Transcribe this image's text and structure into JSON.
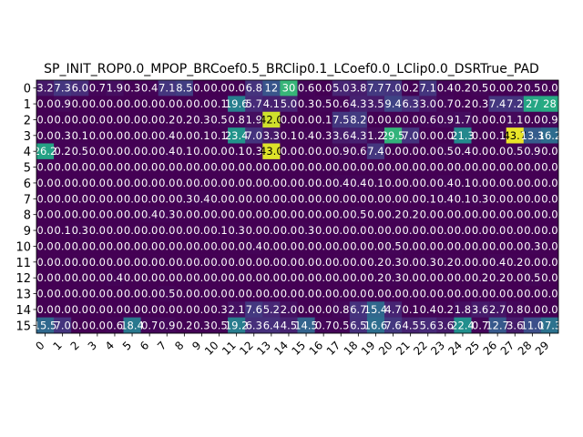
{
  "chart_data": {
    "type": "heatmap",
    "title": "SP_INIT_ROP0.0_MPOP_BRCoef0.5_BRClip0.1_LCoef0.0_LClip0.0_DSRTrue_PAD",
    "xlabel": "",
    "ylabel": "",
    "x_ticks": [
      "0",
      "1",
      "2",
      "3",
      "4",
      "5",
      "6",
      "7",
      "8",
      "9",
      "10",
      "11",
      "12",
      "13",
      "14",
      "15",
      "16",
      "17",
      "18",
      "19",
      "20",
      "21",
      "22",
      "23",
      "24",
      "25",
      "26",
      "27",
      "28",
      "29"
    ],
    "y_ticks": [
      "0",
      "1",
      "2",
      "3",
      "4",
      "5",
      "6",
      "7",
      "8",
      "9",
      "10",
      "11",
      "12",
      "13",
      "14",
      "15"
    ],
    "colormap": "viridis",
    "vmin": 0.0,
    "vmax": 45.0,
    "values": [
      [
        3.2,
        7.3,
        6.0,
        0.7,
        1.9,
        0.3,
        0.4,
        7.1,
        8.5,
        0.0,
        0.0,
        0.0,
        6.8,
        12,
        30,
        0.6,
        0.0,
        5.0,
        3.8,
        7.7,
        7.0,
        0.2,
        7.1,
        0.4,
        0.2,
        0.5,
        0.0,
        0.2,
        0.5,
        0.0
      ],
      [
        0.0,
        0.9,
        0.0,
        0.0,
        0.0,
        0.0,
        0.0,
        0.0,
        0.0,
        0.0,
        0.1,
        19.6,
        5.7,
        4.1,
        5.0,
        0.3,
        0.5,
        0.6,
        4.3,
        3.5,
        9.4,
        6.3,
        3.0,
        0.7,
        0.2,
        0.3,
        7.4,
        7.2,
        27,
        28
      ],
      [
        0.0,
        0.0,
        0.0,
        0.0,
        0.0,
        0.0,
        0.0,
        0.2,
        0.2,
        0.3,
        0.5,
        0.8,
        1.9,
        42.0,
        0.0,
        0.0,
        0.1,
        7.5,
        8.2,
        0.0,
        0.0,
        0.0,
        0.6,
        0.9,
        1.7,
        0.0,
        0.0,
        1.1,
        0.0,
        0.9
      ],
      [
        0.0,
        0.3,
        0.1,
        0.0,
        0.0,
        0.0,
        0.0,
        0.4,
        0.0,
        0.1,
        0.1,
        23.4,
        7.0,
        3.3,
        0.1,
        0.4,
        0.3,
        3.6,
        4.3,
        1.2,
        29.5,
        7.0,
        0.0,
        0.0,
        21.3,
        0.0,
        0.1,
        43.7,
        13.3,
        16.2
      ],
      [
        26.2,
        0.2,
        0.5,
        0.0,
        0.0,
        0.0,
        0.0,
        0.4,
        0.1,
        0.0,
        0.0,
        0.1,
        0.3,
        43.0,
        0.0,
        0.0,
        0.0,
        0.9,
        0.6,
        7.4,
        0.0,
        0.0,
        0.0,
        0.5,
        0.4,
        0.0,
        0.0,
        0.5,
        0.9,
        0.0
      ],
      [
        0.0,
        0.0,
        0.0,
        0.0,
        0.0,
        0.0,
        0.0,
        0.0,
        0.0,
        0.0,
        0.0,
        0.0,
        0.0,
        0.0,
        0.0,
        0.0,
        0.0,
        0.0,
        0.0,
        0.0,
        0.0,
        0.0,
        0.0,
        0.0,
        0.0,
        0.0,
        0.0,
        0.0,
        0.0,
        0.0
      ],
      [
        0.0,
        0.0,
        0.0,
        0.0,
        0.0,
        0.0,
        0.0,
        0.0,
        0.0,
        0.0,
        0.0,
        0.0,
        0.0,
        0.0,
        0.0,
        0.0,
        0.0,
        0.4,
        0.4,
        0.1,
        0.0,
        0.0,
        0.0,
        0.4,
        0.1,
        0.0,
        0.0,
        0.0,
        0.0,
        0.0
      ],
      [
        0.0,
        0.0,
        0.0,
        0.0,
        0.0,
        0.0,
        0.0,
        0.0,
        0.3,
        0.4,
        0.0,
        0.0,
        0.0,
        0.0,
        0.0,
        0.0,
        0.0,
        0.0,
        0.0,
        0.0,
        0.0,
        0.0,
        0.1,
        0.4,
        0.1,
        0.3,
        0.0,
        0.0,
        0.0,
        0.0
      ],
      [
        0.0,
        0.0,
        0.0,
        0.0,
        0.0,
        0.0,
        0.4,
        0.3,
        0.0,
        0.0,
        0.0,
        0.0,
        0.0,
        0.0,
        0.0,
        0.0,
        0.0,
        0.0,
        0.5,
        0.0,
        0.2,
        0.2,
        0.0,
        0.0,
        0.0,
        0.0,
        0.0,
        0.0,
        0.0,
        0.0
      ],
      [
        0.0,
        0.1,
        0.3,
        0.0,
        0.0,
        0.0,
        0.0,
        0.0,
        0.0,
        0.0,
        0.1,
        0.3,
        0.0,
        0.0,
        0.0,
        0.3,
        0.0,
        0.0,
        0.0,
        0.0,
        0.0,
        0.0,
        0.0,
        0.0,
        0.0,
        0.0,
        0.0,
        0.0,
        0.0,
        0.0
      ],
      [
        0.0,
        0.0,
        0.0,
        0.0,
        0.0,
        0.0,
        0.0,
        0.0,
        0.0,
        0.0,
        0.0,
        0.0,
        0.4,
        0.0,
        0.0,
        0.0,
        0.0,
        0.0,
        0.0,
        0.0,
        0.5,
        0.0,
        0.0,
        0.0,
        0.0,
        0.0,
        0.0,
        0.0,
        0.3,
        0.0
      ],
      [
        0.0,
        0.0,
        0.0,
        0.0,
        0.0,
        0.0,
        0.0,
        0.0,
        0.0,
        0.0,
        0.0,
        0.0,
        0.0,
        0.0,
        0.0,
        0.0,
        0.0,
        0.0,
        0.0,
        0.2,
        0.3,
        0.0,
        0.3,
        0.2,
        0.0,
        0.0,
        0.4,
        0.2,
        0.0,
        0.0
      ],
      [
        0.0,
        0.0,
        0.0,
        0.0,
        0.4,
        0.0,
        0.0,
        0.0,
        0.0,
        0.0,
        0.0,
        0.0,
        0.0,
        0.0,
        0.0,
        0.0,
        0.0,
        0.0,
        0.0,
        0.2,
        0.3,
        0.0,
        0.0,
        0.0,
        0.0,
        0.2,
        0.2,
        0.0,
        0.5,
        0.0
      ],
      [
        0.0,
        0.0,
        0.0,
        0.0,
        0.0,
        0.0,
        0.0,
        0.5,
        0.0,
        0.0,
        0.0,
        0.0,
        0.0,
        0.0,
        0.0,
        0.0,
        0.0,
        0.0,
        0.0,
        0.0,
        0.0,
        0.0,
        0.0,
        0.0,
        0.0,
        0.0,
        0.0,
        0.0,
        0.0,
        0.0
      ],
      [
        0.0,
        0.0,
        0.0,
        0.0,
        0.0,
        0.0,
        0.0,
        0.0,
        0.0,
        0.0,
        0.3,
        2.1,
        7.6,
        5.2,
        2.0,
        0.0,
        0.0,
        0.8,
        6.7,
        15.4,
        4.7,
        0.1,
        0.4,
        0.2,
        1.8,
        3.6,
        2.7,
        0.8,
        0.0,
        0.0
      ],
      [
        15.5,
        7.0,
        0.0,
        0.0,
        0.6,
        18.4,
        0.7,
        0.9,
        0.2,
        0.3,
        0.5,
        19.2,
        6.3,
        6.4,
        4.5,
        14.5,
        0.7,
        0.5,
        6.5,
        16.6,
        7.6,
        4.5,
        5.6,
        3.6,
        22.4,
        0.7,
        12.7,
        3.6,
        11.0,
        17.3
      ]
    ],
    "cell_labels": [
      [
        "3.2",
        "7.3",
        "6.0",
        "0.7",
        "1.9",
        "0.3",
        "0.4",
        "7.1",
        "8.5",
        "0.0",
        "0.0",
        "0.0",
        "6.8",
        "12",
        "30",
        "0.6",
        "0.0",
        "5.0",
        "3.8",
        "7.7",
        "7.0",
        "0.2",
        "7.1",
        "0.4",
        "0.2",
        "0.5",
        "0.0",
        "0.2",
        "0.5",
        "0.0"
      ],
      [
        "0.0",
        "0.9",
        "0.0",
        "0.0",
        "0.0",
        "0.0",
        "0.0",
        "0.0",
        "0.0",
        "0.0",
        "0.1",
        "19.6",
        "5.7",
        "4.1",
        "5.0",
        "0.3",
        "0.5",
        "0.6",
        "4.3",
        "3.5",
        "9.4",
        "6.3",
        "3.0",
        "0.7",
        "0.2",
        "0.3",
        "7.4",
        "7.2",
        "27",
        "28"
      ],
      [
        "0.0",
        "0.0",
        "0.0",
        "0.0",
        "0.0",
        "0.0",
        "0.0",
        "0.2",
        "0.2",
        "0.3",
        "0.5",
        "0.8",
        "1.9",
        "42.0",
        "0.0",
        "0.0",
        "0.1",
        "7.5",
        "8.2",
        "0.0",
        "0.0",
        "0.0",
        "0.6",
        "0.9",
        "1.7",
        "0.0",
        "0.0",
        "1.1",
        "0.0",
        "0.9"
      ],
      [
        "0.0",
        "0.3",
        "0.1",
        "0.0",
        "0.0",
        "0.0",
        "0.0",
        "0.4",
        "0.0",
        "0.1",
        "0.1",
        "23.4",
        "7.0",
        "3.3",
        "0.1",
        "0.4",
        "0.3",
        "3.6",
        "4.3",
        "1.2",
        "29.5",
        "7.0",
        "0.0",
        "0.0",
        "21.3",
        "0.0",
        "0.1",
        "43.7",
        "13.3",
        "16.2"
      ],
      [
        "26.2",
        "0.2",
        "0.5",
        "0.0",
        "0.0",
        "0.0",
        "0.0",
        "0.4",
        "0.1",
        "0.0",
        "0.0",
        "0.1",
        "0.3",
        "43.0",
        "0.0",
        "0.0",
        "0.0",
        "0.9",
        "0.6",
        "7.4",
        "0.0",
        "0.0",
        "0.0",
        "0.5",
        "0.4",
        "0.0",
        "0.0",
        "0.5",
        "0.9",
        "0.0"
      ],
      [
        "0.0",
        "0.0",
        "0.0",
        "0.0",
        "0.0",
        "0.0",
        "0.0",
        "0.0",
        "0.0",
        "0.0",
        "0.0",
        "0.0",
        "0.0",
        "0.0",
        "0.0",
        "0.0",
        "0.0",
        "0.0",
        "0.0",
        "0.0",
        "0.0",
        "0.0",
        "0.0",
        "0.0",
        "0.0",
        "0.0",
        "0.0",
        "0.0",
        "0.0",
        "0.0"
      ],
      [
        "0.0",
        "0.0",
        "0.0",
        "0.0",
        "0.0",
        "0.0",
        "0.0",
        "0.0",
        "0.0",
        "0.0",
        "0.0",
        "0.0",
        "0.0",
        "0.0",
        "0.0",
        "0.0",
        "0.0",
        "0.4",
        "0.4",
        "0.1",
        "0.0",
        "0.0",
        "0.0",
        "0.4",
        "0.1",
        "0.0",
        "0.0",
        "0.0",
        "0.0",
        "0.0"
      ],
      [
        "0.0",
        "0.0",
        "0.0",
        "0.0",
        "0.0",
        "0.0",
        "0.0",
        "0.0",
        "0.3",
        "0.4",
        "0.0",
        "0.0",
        "0.0",
        "0.0",
        "0.0",
        "0.0",
        "0.0",
        "0.0",
        "0.0",
        "0.0",
        "0.0",
        "0.0",
        "0.1",
        "0.4",
        "0.1",
        "0.3",
        "0.0",
        "0.0",
        "0.0",
        "0.0"
      ],
      [
        "0.0",
        "0.0",
        "0.0",
        "0.0",
        "0.0",
        "0.0",
        "0.4",
        "0.3",
        "0.0",
        "0.0",
        "0.0",
        "0.0",
        "0.0",
        "0.0",
        "0.0",
        "0.0",
        "0.0",
        "0.0",
        "0.5",
        "0.0",
        "0.2",
        "0.2",
        "0.0",
        "0.0",
        "0.0",
        "0.0",
        "0.0",
        "0.0",
        "0.0",
        "0.0"
      ],
      [
        "0.0",
        "0.1",
        "0.3",
        "0.0",
        "0.0",
        "0.0",
        "0.0",
        "0.0",
        "0.0",
        "0.0",
        "0.1",
        "0.3",
        "0.0",
        "0.0",
        "0.0",
        "0.3",
        "0.0",
        "0.0",
        "0.0",
        "0.0",
        "0.0",
        "0.0",
        "0.0",
        "0.0",
        "0.0",
        "0.0",
        "0.0",
        "0.0",
        "0.0",
        "0.0"
      ],
      [
        "0.0",
        "0.0",
        "0.0",
        "0.0",
        "0.0",
        "0.0",
        "0.0",
        "0.0",
        "0.0",
        "0.0",
        "0.0",
        "0.0",
        "0.4",
        "0.0",
        "0.0",
        "0.0",
        "0.0",
        "0.0",
        "0.0",
        "0.0",
        "0.5",
        "0.0",
        "0.0",
        "0.0",
        "0.0",
        "0.0",
        "0.0",
        "0.0",
        "0.3",
        "0.0"
      ],
      [
        "0.0",
        "0.0",
        "0.0",
        "0.0",
        "0.0",
        "0.0",
        "0.0",
        "0.0",
        "0.0",
        "0.0",
        "0.0",
        "0.0",
        "0.0",
        "0.0",
        "0.0",
        "0.0",
        "0.0",
        "0.0",
        "0.0",
        "0.2",
        "0.3",
        "0.0",
        "0.3",
        "0.2",
        "0.0",
        "0.0",
        "0.4",
        "0.2",
        "0.0",
        "0.0"
      ],
      [
        "0.0",
        "0.0",
        "0.0",
        "0.0",
        "0.4",
        "0.0",
        "0.0",
        "0.0",
        "0.0",
        "0.0",
        "0.0",
        "0.0",
        "0.0",
        "0.0",
        "0.0",
        "0.0",
        "0.0",
        "0.0",
        "0.0",
        "0.2",
        "0.3",
        "0.0",
        "0.0",
        "0.0",
        "0.0",
        "0.2",
        "0.2",
        "0.0",
        "0.5",
        "0.0"
      ],
      [
        "0.0",
        "0.0",
        "0.0",
        "0.0",
        "0.0",
        "0.0",
        "0.0",
        "0.5",
        "0.0",
        "0.0",
        "0.0",
        "0.0",
        "0.0",
        "0.0",
        "0.0",
        "0.0",
        "0.0",
        "0.0",
        "0.0",
        "0.0",
        "0.0",
        "0.0",
        "0.0",
        "0.0",
        "0.0",
        "0.0",
        "0.0",
        "0.0",
        "0.0",
        "0.0"
      ],
      [
        "0.0",
        "0.0",
        "0.0",
        "0.0",
        "0.0",
        "0.0",
        "0.0",
        "0.0",
        "0.0",
        "0.0",
        "0.3",
        "2.1",
        "7.6",
        "5.2",
        "2.0",
        "0.0",
        "0.0",
        "0.8",
        "6.7",
        "15.4",
        "4.7",
        "0.1",
        "0.4",
        "0.2",
        "1.8",
        "3.6",
        "2.7",
        "0.8",
        "0.0",
        "0.0"
      ],
      [
        "15.5",
        "7.0",
        "0.0",
        "0.0",
        "0.6",
        "18.4",
        "0.7",
        "0.9",
        "0.2",
        "0.3",
        "0.5",
        "19.2",
        "6.3",
        "6.4",
        "4.5",
        "14.5",
        "0.7",
        "0.5",
        "6.5",
        "16.6",
        "7.6",
        "4.5",
        "5.6",
        "3.6",
        "22.4",
        "0.7",
        "12.7",
        "3.6",
        "11.0",
        "17.3"
      ]
    ],
    "grid": false,
    "legend": "none"
  }
}
